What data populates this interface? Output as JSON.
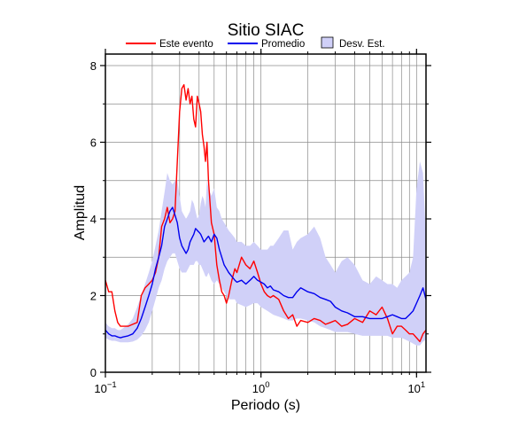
{
  "chart_data": {
    "type": "line",
    "title": "Sitio SIAC",
    "xlabel": "Periodo (s)",
    "ylabel": "Amplitud",
    "xscale": "log",
    "xlim": [
      0.1,
      11.5
    ],
    "ylim": [
      0,
      8.3
    ],
    "grid": true,
    "legend_position": "top-center",
    "x_ticks": [
      {
        "value": 0.1,
        "base": "10",
        "exp": "−1"
      },
      {
        "value": 1,
        "base": "10",
        "exp": "0"
      },
      {
        "value": 10,
        "base": "10",
        "exp": "1"
      }
    ],
    "y_ticks": [
      "0",
      "2",
      "4",
      "6",
      "8"
    ],
    "legend": [
      {
        "label": "Este evento",
        "kind": "line",
        "color": "#ff0000"
      },
      {
        "label": "Promedio",
        "kind": "line",
        "color": "#0000ee"
      },
      {
        "label": "Desv. Est.",
        "kind": "band",
        "color": "#d0d0f8"
      }
    ],
    "series": [
      {
        "name": "Este evento",
        "color": "#ff0000",
        "x": [
          0.1,
          0.105,
          0.11,
          0.115,
          0.12,
          0.125,
          0.13,
          0.14,
          0.15,
          0.16,
          0.17,
          0.18,
          0.19,
          0.2,
          0.21,
          0.22,
          0.23,
          0.24,
          0.25,
          0.26,
          0.27,
          0.28,
          0.29,
          0.3,
          0.31,
          0.32,
          0.33,
          0.34,
          0.35,
          0.36,
          0.37,
          0.38,
          0.39,
          0.4,
          0.41,
          0.42,
          0.43,
          0.44,
          0.45,
          0.46,
          0.48,
          0.5,
          0.52,
          0.54,
          0.56,
          0.58,
          0.6,
          0.62,
          0.65,
          0.68,
          0.7,
          0.75,
          0.8,
          0.85,
          0.9,
          0.95,
          1.0,
          1.05,
          1.1,
          1.15,
          1.2,
          1.3,
          1.4,
          1.5,
          1.6,
          1.7,
          1.8,
          2.0,
          2.2,
          2.4,
          2.6,
          2.8,
          3.0,
          3.3,
          3.6,
          4.0,
          4.5,
          5.0,
          5.5,
          6.0,
          6.5,
          7.0,
          7.5,
          8.0,
          8.5,
          9.0,
          9.5,
          10.0,
          10.5,
          11.0,
          11.5
        ],
        "y": [
          2.4,
          2.1,
          2.1,
          1.6,
          1.3,
          1.2,
          1.2,
          1.2,
          1.25,
          1.3,
          2.0,
          2.2,
          2.3,
          2.4,
          2.6,
          3.0,
          3.8,
          4.0,
          4.3,
          3.9,
          4.0,
          4.2,
          5.5,
          6.8,
          7.4,
          7.5,
          7.1,
          7.4,
          7.0,
          7.2,
          6.6,
          6.4,
          7.2,
          7.0,
          6.8,
          6.2,
          5.9,
          5.5,
          6.0,
          5.0,
          3.9,
          3.6,
          2.8,
          2.4,
          2.1,
          2.0,
          1.8,
          2.0,
          2.4,
          2.7,
          2.6,
          3.0,
          2.8,
          2.7,
          2.9,
          2.6,
          2.3,
          2.1,
          2.0,
          1.95,
          2.0,
          1.9,
          1.6,
          1.4,
          1.5,
          1.2,
          1.35,
          1.3,
          1.4,
          1.35,
          1.25,
          1.3,
          1.35,
          1.2,
          1.25,
          1.4,
          1.3,
          1.6,
          1.5,
          1.7,
          1.4,
          1.0,
          1.2,
          1.2,
          1.1,
          1.0,
          1.0,
          0.9,
          0.8,
          1.0,
          1.1
        ]
      },
      {
        "name": "Promedio",
        "color": "#0000ee",
        "x": [
          0.1,
          0.105,
          0.11,
          0.115,
          0.12,
          0.125,
          0.13,
          0.14,
          0.15,
          0.16,
          0.17,
          0.18,
          0.19,
          0.2,
          0.21,
          0.22,
          0.23,
          0.24,
          0.25,
          0.26,
          0.27,
          0.28,
          0.29,
          0.3,
          0.31,
          0.32,
          0.33,
          0.34,
          0.35,
          0.36,
          0.37,
          0.38,
          0.39,
          0.4,
          0.41,
          0.42,
          0.43,
          0.44,
          0.45,
          0.46,
          0.48,
          0.5,
          0.52,
          0.54,
          0.56,
          0.58,
          0.6,
          0.62,
          0.65,
          0.68,
          0.7,
          0.75,
          0.8,
          0.85,
          0.9,
          0.95,
          1.0,
          1.05,
          1.1,
          1.15,
          1.2,
          1.3,
          1.4,
          1.5,
          1.6,
          1.7,
          1.8,
          2.0,
          2.2,
          2.4,
          2.6,
          2.8,
          3.0,
          3.3,
          3.6,
          4.0,
          4.5,
          5.0,
          5.5,
          6.0,
          6.5,
          7.0,
          7.5,
          8.0,
          8.5,
          9.0,
          9.5,
          10.0,
          10.5,
          11.0,
          11.5
        ],
        "y": [
          1.1,
          1.0,
          0.95,
          0.95,
          0.92,
          0.9,
          0.92,
          0.95,
          1.0,
          1.15,
          1.4,
          1.7,
          2.0,
          2.3,
          2.7,
          3.0,
          3.3,
          3.8,
          4.0,
          4.2,
          4.3,
          4.1,
          3.9,
          3.5,
          3.3,
          3.2,
          3.1,
          3.2,
          3.4,
          3.5,
          3.6,
          3.75,
          3.7,
          3.65,
          3.6,
          3.5,
          3.4,
          3.45,
          3.5,
          3.55,
          3.4,
          3.6,
          3.5,
          3.2,
          3.0,
          2.8,
          2.7,
          2.6,
          2.5,
          2.4,
          2.35,
          2.4,
          2.3,
          2.4,
          2.5,
          2.4,
          2.35,
          2.3,
          2.2,
          2.25,
          2.15,
          2.1,
          2.0,
          1.95,
          1.95,
          2.1,
          2.2,
          2.1,
          2.05,
          1.95,
          1.9,
          1.85,
          1.7,
          1.6,
          1.55,
          1.45,
          1.45,
          1.4,
          1.4,
          1.4,
          1.45,
          1.5,
          1.45,
          1.4,
          1.4,
          1.5,
          1.6,
          1.8,
          2.0,
          2.2,
          1.9
        ]
      }
    ],
    "band": {
      "name": "Desv. Est.",
      "color": "#d0d0f8",
      "x": [
        0.1,
        0.105,
        0.11,
        0.115,
        0.12,
        0.125,
        0.13,
        0.14,
        0.15,
        0.16,
        0.17,
        0.18,
        0.19,
        0.2,
        0.21,
        0.22,
        0.23,
        0.24,
        0.25,
        0.26,
        0.27,
        0.28,
        0.29,
        0.3,
        0.31,
        0.32,
        0.33,
        0.34,
        0.35,
        0.36,
        0.37,
        0.38,
        0.39,
        0.4,
        0.41,
        0.42,
        0.43,
        0.44,
        0.45,
        0.46,
        0.48,
        0.5,
        0.52,
        0.54,
        0.56,
        0.58,
        0.6,
        0.62,
        0.65,
        0.68,
        0.7,
        0.75,
        0.8,
        0.85,
        0.9,
        0.95,
        1.0,
        1.05,
        1.1,
        1.15,
        1.2,
        1.3,
        1.4,
        1.5,
        1.6,
        1.7,
        1.8,
        2.0,
        2.2,
        2.4,
        2.6,
        2.8,
        3.0,
        3.3,
        3.6,
        4.0,
        4.5,
        5.0,
        5.5,
        6.0,
        6.5,
        7.0,
        7.5,
        8.0,
        8.5,
        9.0,
        9.5,
        10.0,
        10.5,
        11.0,
        11.5
      ],
      "upper": [
        1.3,
        1.2,
        1.15,
        1.15,
        1.1,
        1.1,
        1.15,
        1.25,
        1.4,
        1.7,
        2.0,
        2.3,
        2.6,
        2.9,
        3.3,
        3.7,
        4.2,
        4.7,
        5.2,
        5.0,
        4.9,
        5.0,
        5.0,
        4.6,
        4.2,
        4.1,
        4.0,
        4.1,
        4.2,
        4.5,
        4.4,
        4.2,
        4.0,
        4.1,
        4.4,
        4.6,
        4.5,
        4.3,
        5.0,
        4.8,
        4.6,
        4.8,
        4.3,
        4.2,
        4.0,
        3.9,
        3.8,
        3.7,
        3.6,
        3.5,
        3.4,
        3.4,
        3.3,
        3.3,
        3.4,
        3.3,
        3.2,
        3.2,
        3.2,
        3.3,
        3.3,
        3.5,
        3.7,
        3.7,
        3.2,
        3.4,
        3.5,
        3.6,
        3.8,
        3.5,
        3.0,
        2.8,
        2.6,
        2.9,
        3.0,
        2.8,
        2.4,
        2.3,
        2.5,
        2.4,
        2.3,
        2.3,
        2.2,
        2.4,
        2.5,
        2.6,
        3.0,
        4.8,
        5.5,
        5.2,
        3.5
      ],
      "lower": [
        0.9,
        0.85,
        0.82,
        0.82,
        0.8,
        0.78,
        0.78,
        0.78,
        0.8,
        0.85,
        0.95,
        1.1,
        1.3,
        1.6,
        1.9,
        2.2,
        2.4,
        2.7,
        2.9,
        3.0,
        3.1,
        3.1,
        2.9,
        2.7,
        2.6,
        2.6,
        2.6,
        2.7,
        2.8,
        2.8,
        2.8,
        2.9,
        2.9,
        2.8,
        2.8,
        2.7,
        2.6,
        2.5,
        2.5,
        2.6,
        2.4,
        2.3,
        2.4,
        2.3,
        2.2,
        2.1,
        2.0,
        1.9,
        1.9,
        1.9,
        1.8,
        1.75,
        1.7,
        1.75,
        1.8,
        1.8,
        1.7,
        1.65,
        1.6,
        1.55,
        1.5,
        1.45,
        1.4,
        1.35,
        1.35,
        1.4,
        1.4,
        1.35,
        1.3,
        1.2,
        1.15,
        1.1,
        1.05,
        1.05,
        1.05,
        1.0,
        0.95,
        0.95,
        0.95,
        0.95,
        0.95,
        0.9,
        0.9,
        0.9,
        0.85,
        0.8,
        0.75,
        0.7,
        0.7,
        0.8,
        0.85
      ]
    }
  }
}
